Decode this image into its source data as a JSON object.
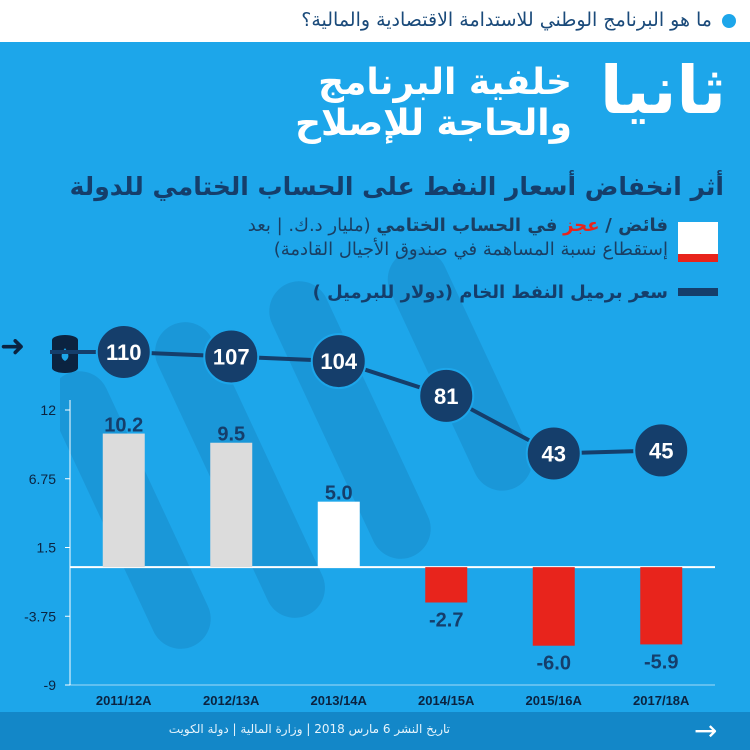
{
  "header": {
    "question": "ما هو البرنامج الوطني للاستدامة الاقتصادية والمالية؟"
  },
  "section": {
    "number": "ثانيا",
    "title_line1": "خلفية البرنامج",
    "title_line2": "والحاجة للإصلاح"
  },
  "subtitle": "أثر انخفاض أسعار النفط على الحساب الختامي للدولة",
  "legend": {
    "bar_label_surplus": "فائض /",
    "bar_label_deficit": "عجز",
    "bar_label_rest": "في الحساب الختامي",
    "bar_label_unit": "(مليار د.ك. | بعد",
    "bar_label_line2": "إستقطاع نسبة المساهمة في صندوق الأجيال القادمة)",
    "line_label": "سعر برميل النفط الخام (دولار للبرميل )"
  },
  "colors": {
    "background": "#1da6ea",
    "navy": "#153e6b",
    "deficit": "#e8241c",
    "surplus": "#ffffff"
  },
  "footer": {
    "text": "تاريخ النشر 6 مارس 2018 | وزارة المالية | دولة الكويت"
  },
  "chart_data": {
    "type": "bar",
    "categories": [
      "2011/12A",
      "2012/13A",
      "2013/14A",
      "2014/15A",
      "2015/16A",
      "2017/18A"
    ],
    "y_ticks": [
      "12",
      "6.75",
      "1.5",
      "-3.75",
      "-9"
    ],
    "ylim": [
      -9,
      12
    ],
    "series": [
      {
        "name": "فائض / عجز في الحساب الختامي",
        "values": [
          10.2,
          9.5,
          5.0,
          -2.7,
          -6.0,
          -5.9
        ],
        "labels": [
          "10.2",
          "9.5",
          "5.0",
          "-2.7",
          "-6.0",
          "-5.9"
        ]
      },
      {
        "name": "سعر برميل النفط الخام",
        "type": "line",
        "values": [
          110,
          107,
          104,
          81,
          43,
          45
        ],
        "labels": [
          "110",
          "107",
          "104",
          "81",
          "43",
          "45"
        ]
      }
    ]
  }
}
